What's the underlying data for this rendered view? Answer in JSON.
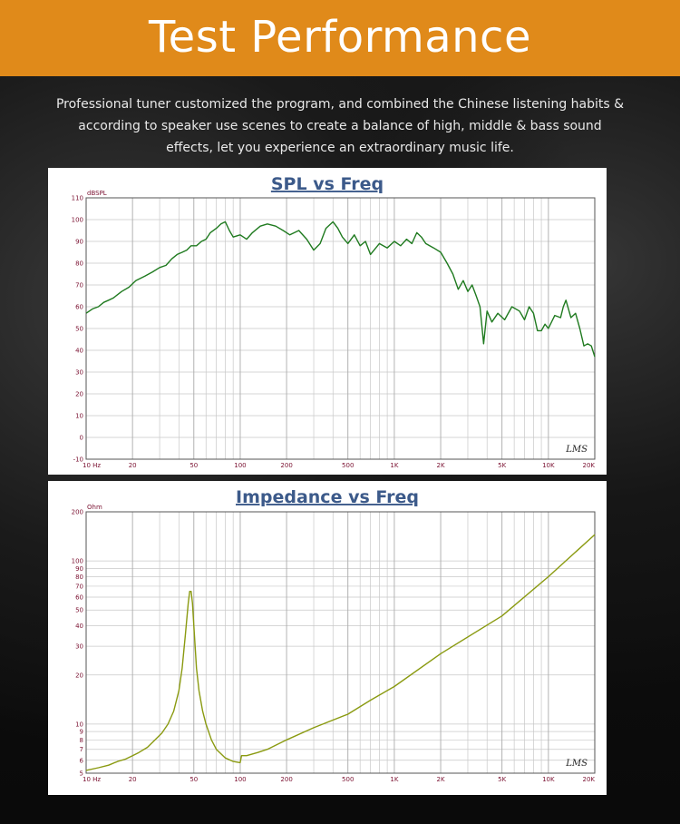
{
  "banner": {
    "title": "Test Performance"
  },
  "description": "Professional tuner customized the program, and combined the Chinese listening habits & according to speaker use scenes to create a balance of high, middle & bass sound effects, let you experience an extraordinary music life.",
  "colors": {
    "banner": "#e08a1a",
    "spl_line": "#1f7a1f",
    "impedance_line": "#8a9a10",
    "title": "#3c5a8a",
    "tick_labels": "#7a1030"
  },
  "chart_data": [
    {
      "type": "line",
      "title": "SPL vs Freq",
      "ylabel": "dBSPL",
      "xlabel": "",
      "xscale": "log",
      "xlim": [
        10,
        20000
      ],
      "ylim": [
        -10,
        110
      ],
      "x_ticks": [
        {
          "v": 10,
          "t": "10  Hz"
        },
        {
          "v": 20,
          "t": "20"
        },
        {
          "v": 50,
          "t": "50"
        },
        {
          "v": 100,
          "t": "100"
        },
        {
          "v": 200,
          "t": "200"
        },
        {
          "v": 500,
          "t": "500"
        },
        {
          "v": 1000,
          "t": "1K"
        },
        {
          "v": 2000,
          "t": "2K"
        },
        {
          "v": 5000,
          "t": "5K"
        },
        {
          "v": 10000,
          "t": "10K"
        },
        {
          "v": 20000,
          "t": "20K"
        }
      ],
      "y_ticks": [
        {
          "v": 110,
          "t": "110"
        },
        {
          "v": 100,
          "t": "100"
        },
        {
          "v": 90,
          "t": "90"
        },
        {
          "v": 80,
          "t": "80"
        },
        {
          "v": 70,
          "t": "70"
        },
        {
          "v": 60,
          "t": "60"
        },
        {
          "v": 50,
          "t": "50"
        },
        {
          "v": 40,
          "t": "40"
        },
        {
          "v": 30,
          "t": "30"
        },
        {
          "v": 20,
          "t": "20"
        },
        {
          "v": 10,
          "t": "10"
        },
        {
          "v": 0,
          "t": "0"
        },
        {
          "v": -10,
          "t": "-10"
        }
      ],
      "grid": true,
      "watermark": "LMS",
      "series": [
        {
          "x": [
            10,
            11,
            12,
            13,
            14,
            15,
            17,
            19,
            21,
            24,
            27,
            30,
            33,
            36,
            39,
            42,
            45,
            48,
            52,
            56,
            60,
            64,
            70,
            75,
            80,
            85,
            90,
            100,
            110,
            120,
            135,
            150,
            170,
            190,
            210,
            240,
            270,
            300,
            330,
            360,
            400,
            430,
            460,
            500,
            550,
            600,
            650,
            700,
            800,
            900,
            1000,
            1100,
            1200,
            1300,
            1400,
            1500,
            1600,
            1800,
            2000,
            2200,
            2400,
            2600,
            2800,
            3000,
            3200,
            3400,
            3600,
            3800,
            4000,
            4300,
            4700,
            5200,
            5800,
            6500,
            7000,
            7500,
            8000,
            8500,
            9000,
            9500,
            10000,
            11000,
            12000,
            12500,
            13000,
            14000,
            15000,
            16000,
            17000,
            18000,
            19000,
            20000
          ],
          "y": [
            57,
            59,
            60,
            62,
            63,
            64,
            67,
            69,
            72,
            74,
            76,
            78,
            79,
            82,
            84,
            85,
            86,
            88,
            88,
            90,
            91,
            94,
            96,
            98,
            99,
            95,
            92,
            93,
            91,
            94,
            97,
            98,
            97,
            95,
            93,
            95,
            91,
            86,
            89,
            96,
            99,
            96,
            92,
            89,
            93,
            88,
            90,
            84,
            89,
            87,
            90,
            88,
            91,
            89,
            94,
            92,
            89,
            87,
            85,
            80,
            75,
            68,
            72,
            67,
            70,
            65,
            60,
            43,
            58,
            53,
            57,
            54,
            60,
            58,
            54,
            60,
            57,
            49,
            49,
            52,
            50,
            56,
            55,
            60,
            63,
            55,
            57,
            50,
            42,
            43,
            42,
            37
          ]
        }
      ]
    },
    {
      "type": "line",
      "title": "Impedance vs Freq",
      "ylabel": "Ohm",
      "xlabel": "",
      "xscale": "log",
      "yscale": "log",
      "xlim": [
        10,
        20000
      ],
      "ylim": [
        5,
        200
      ],
      "x_ticks": [
        {
          "v": 10,
          "t": "10  Hz"
        },
        {
          "v": 20,
          "t": "20"
        },
        {
          "v": 50,
          "t": "50"
        },
        {
          "v": 100,
          "t": "100"
        },
        {
          "v": 200,
          "t": "200"
        },
        {
          "v": 500,
          "t": "500"
        },
        {
          "v": 1000,
          "t": "1K"
        },
        {
          "v": 2000,
          "t": "2K"
        },
        {
          "v": 5000,
          "t": "5K"
        },
        {
          "v": 10000,
          "t": "10K"
        },
        {
          "v": 20000,
          "t": "20K"
        }
      ],
      "y_ticks": [
        {
          "v": 200,
          "t": "200"
        },
        {
          "v": 100,
          "t": "100"
        },
        {
          "v": 90,
          "t": "90"
        },
        {
          "v": 80,
          "t": "80"
        },
        {
          "v": 70,
          "t": "70"
        },
        {
          "v": 60,
          "t": "60"
        },
        {
          "v": 50,
          "t": "50"
        },
        {
          "v": 40,
          "t": "40"
        },
        {
          "v": 30,
          "t": "30"
        },
        {
          "v": 20,
          "t": "20"
        },
        {
          "v": 10,
          "t": "10"
        },
        {
          "v": 9,
          "t": "9"
        },
        {
          "v": 8,
          "t": "8"
        },
        {
          "v": 7,
          "t": "7"
        },
        {
          "v": 6,
          "t": "6"
        },
        {
          "v": 5,
          "t": "5"
        }
      ],
      "grid": true,
      "watermark": "LMS",
      "series": [
        {
          "x": [
            10,
            12,
            14,
            16,
            18,
            20,
            22,
            25,
            28,
            31,
            34,
            37,
            40,
            42,
            44,
            46,
            47,
            48,
            49,
            50,
            51,
            52,
            54,
            57,
            60,
            65,
            70,
            80,
            90,
            100,
            102,
            110,
            130,
            150,
            200,
            300,
            500,
            700,
            1000,
            2000,
            5000,
            10000,
            20000
          ],
          "y": [
            5.2,
            5.4,
            5.6,
            5.9,
            6.1,
            6.4,
            6.7,
            7.2,
            8.0,
            8.8,
            10.0,
            12.0,
            16.0,
            22.0,
            35.0,
            55.0,
            65.0,
            65.0,
            55.0,
            40.0,
            30.0,
            22.0,
            16.0,
            12.0,
            10.0,
            8.0,
            7.0,
            6.2,
            5.9,
            5.8,
            6.4,
            6.4,
            6.7,
            7.0,
            8.0,
            9.5,
            11.5,
            14.0,
            17.0,
            27.0,
            46.0,
            80.0,
            145.0
          ]
        }
      ]
    }
  ]
}
